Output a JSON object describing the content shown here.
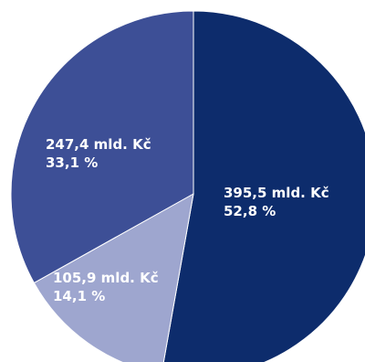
{
  "chart_data": {
    "type": "pie",
    "title": "",
    "slices": [
      {
        "value_text": "395,5 mld. Kč",
        "percent_text": "52,8 %",
        "value": 395.5,
        "percent": 52.8,
        "color": "#0d2c6c"
      },
      {
        "value_text": "105,9 mld. Kč",
        "percent_text": "14,1 %",
        "value": 105.9,
        "percent": 14.1,
        "color": "#9ea6cf"
      },
      {
        "value_text": "247,4 mld. Kč",
        "percent_text": "33,1 %",
        "value": 247.4,
        "percent": 33.1,
        "color": "#3d4f96"
      }
    ],
    "legend": "none"
  }
}
